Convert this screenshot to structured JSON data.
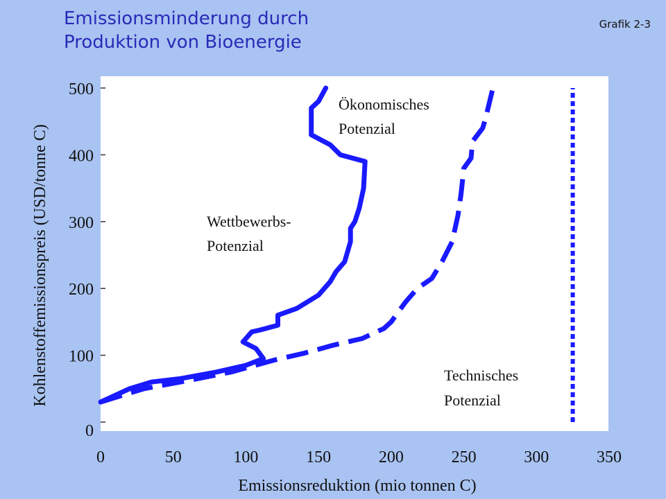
{
  "header": {
    "title_line1": "Emissionsminderung durch",
    "title_line2": "Produktion von Bioenergie",
    "label": "Grafik 2-3"
  },
  "chart_data": {
    "type": "line",
    "xlabel": "Emissionsreduktion  (mio tonnen C)",
    "ylabel": "Kohlenstoffemissionspreis  (USD/tonne C)",
    "xlim": [
      0,
      350
    ],
    "ylim": [
      0,
      500
    ],
    "x_ticks": [
      0,
      50,
      100,
      150,
      200,
      250,
      300,
      350
    ],
    "y_ticks": [
      0,
      100,
      200,
      300,
      400,
      500
    ],
    "colors": {
      "series": "#1a1aff",
      "background": "#a9c3f2",
      "plot": "#ffffff"
    },
    "series": [
      {
        "name": "Wettbewerbs-Potenzial",
        "style": "solid",
        "points": [
          [
            0,
            30
          ],
          [
            20,
            50
          ],
          [
            35,
            60
          ],
          [
            55,
            65
          ],
          [
            80,
            75
          ],
          [
            100,
            85
          ],
          [
            112,
            95
          ],
          [
            107,
            110
          ],
          [
            98,
            120
          ],
          [
            104,
            135
          ],
          [
            110,
            138
          ],
          [
            122,
            145
          ],
          [
            122,
            160
          ],
          [
            135,
            170
          ],
          [
            150,
            190
          ],
          [
            158,
            210
          ],
          [
            162,
            225
          ],
          [
            168,
            240
          ],
          [
            170,
            255
          ],
          [
            172,
            270
          ],
          [
            172,
            290
          ],
          [
            175,
            300
          ],
          [
            178,
            320
          ],
          [
            181,
            350
          ],
          [
            182,
            390
          ],
          [
            165,
            400
          ],
          [
            158,
            415
          ],
          [
            145,
            430
          ],
          [
            145,
            470
          ],
          [
            150,
            480
          ],
          [
            155,
            500
          ]
        ]
      },
      {
        "name": "Ökonomisches Potenzial",
        "style": "dashed",
        "points": [
          [
            0,
            30
          ],
          [
            30,
            50
          ],
          [
            60,
            62
          ],
          [
            90,
            75
          ],
          [
            120,
            93
          ],
          [
            140,
            103
          ],
          [
            160,
            115
          ],
          [
            180,
            125
          ],
          [
            195,
            140
          ],
          [
            200,
            150
          ],
          [
            205,
            165
          ],
          [
            210,
            180
          ],
          [
            218,
            200
          ],
          [
            228,
            215
          ],
          [
            235,
            240
          ],
          [
            242,
            270
          ],
          [
            244,
            290
          ],
          [
            246,
            310
          ],
          [
            248,
            340
          ],
          [
            250,
            380
          ],
          [
            255,
            395
          ],
          [
            256,
            420
          ],
          [
            263,
            440
          ],
          [
            265,
            455
          ],
          [
            270,
            500
          ]
        ]
      },
      {
        "name": "Technisches Potenzial",
        "style": "dotted",
        "points": [
          [
            325,
            0
          ],
          [
            325,
            500
          ]
        ]
      }
    ],
    "annotations": [
      {
        "text_line1": "Ökonomisches",
        "text_line2": "Potenzial"
      },
      {
        "text_line1": "Wettbewerbs-",
        "text_line2": "Potenzial"
      },
      {
        "text_line1": "Technisches",
        "text_line2": "Potenzial"
      }
    ]
  }
}
